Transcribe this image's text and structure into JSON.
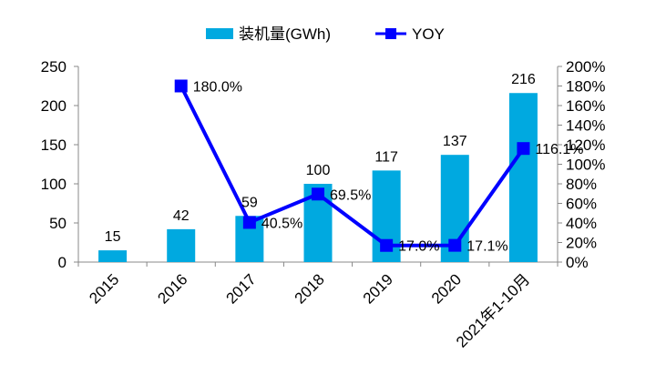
{
  "chart_data": {
    "type": "bar",
    "categories": [
      "2015",
      "2016",
      "2017",
      "2018",
      "2019",
      "2020",
      "2021年1-10月"
    ],
    "series": [
      {
        "name": "装机量(GWh)",
        "type": "bar",
        "axis": "left",
        "values": [
          15,
          42,
          59,
          100,
          117,
          137,
          216
        ],
        "labels": [
          "15",
          "42",
          "59",
          "100",
          "117",
          "137",
          "216"
        ],
        "color": "#00A9E0"
      },
      {
        "name": "YOY",
        "type": "line",
        "axis": "right",
        "values": [
          null,
          180.0,
          40.5,
          69.5,
          17.0,
          17.1,
          116.1
        ],
        "labels": [
          "",
          "180.0%",
          "40.5%",
          "69.5%",
          "17.0%",
          "17.1%",
          "116.1%"
        ],
        "color": "#0000FF"
      }
    ],
    "y_left": {
      "lim": [
        0,
        250
      ],
      "ticks": [
        0,
        50,
        100,
        150,
        200,
        250
      ]
    },
    "y_right": {
      "lim": [
        0,
        200
      ],
      "ticks": [
        0,
        20,
        40,
        60,
        80,
        100,
        120,
        140,
        160,
        180,
        200
      ],
      "tick_labels": [
        "0%",
        "20%",
        "40%",
        "60%",
        "80%",
        "100%",
        "120%",
        "140%",
        "160%",
        "180%",
        "200%"
      ]
    },
    "legend": {
      "position": "top-center",
      "entries": [
        "装机量(GWh)",
        "YOY"
      ]
    },
    "grid": false
  }
}
